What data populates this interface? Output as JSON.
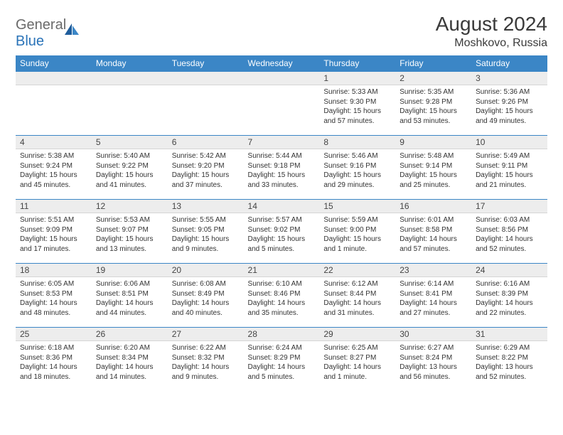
{
  "brand": {
    "part1": "General",
    "part2": "Blue"
  },
  "title": "August 2024",
  "location": "Moshkovo, Russia",
  "colors": {
    "header_bg": "#3b86c6",
    "header_text": "#ffffff",
    "daynum_bg": "#ededed",
    "body_text": "#333333",
    "title_text": "#3a3a3a",
    "logo_grey": "#6a6a6a",
    "logo_blue": "#2a73b8"
  },
  "day_headers": [
    "Sunday",
    "Monday",
    "Tuesday",
    "Wednesday",
    "Thursday",
    "Friday",
    "Saturday"
  ],
  "weeks": [
    [
      {
        "n": "",
        "sr": "",
        "ss": "",
        "dl": ""
      },
      {
        "n": "",
        "sr": "",
        "ss": "",
        "dl": ""
      },
      {
        "n": "",
        "sr": "",
        "ss": "",
        "dl": ""
      },
      {
        "n": "",
        "sr": "",
        "ss": "",
        "dl": ""
      },
      {
        "n": "1",
        "sr": "Sunrise: 5:33 AM",
        "ss": "Sunset: 9:30 PM",
        "dl": "Daylight: 15 hours and 57 minutes."
      },
      {
        "n": "2",
        "sr": "Sunrise: 5:35 AM",
        "ss": "Sunset: 9:28 PM",
        "dl": "Daylight: 15 hours and 53 minutes."
      },
      {
        "n": "3",
        "sr": "Sunrise: 5:36 AM",
        "ss": "Sunset: 9:26 PM",
        "dl": "Daylight: 15 hours and 49 minutes."
      }
    ],
    [
      {
        "n": "4",
        "sr": "Sunrise: 5:38 AM",
        "ss": "Sunset: 9:24 PM",
        "dl": "Daylight: 15 hours and 45 minutes."
      },
      {
        "n": "5",
        "sr": "Sunrise: 5:40 AM",
        "ss": "Sunset: 9:22 PM",
        "dl": "Daylight: 15 hours and 41 minutes."
      },
      {
        "n": "6",
        "sr": "Sunrise: 5:42 AM",
        "ss": "Sunset: 9:20 PM",
        "dl": "Daylight: 15 hours and 37 minutes."
      },
      {
        "n": "7",
        "sr": "Sunrise: 5:44 AM",
        "ss": "Sunset: 9:18 PM",
        "dl": "Daylight: 15 hours and 33 minutes."
      },
      {
        "n": "8",
        "sr": "Sunrise: 5:46 AM",
        "ss": "Sunset: 9:16 PM",
        "dl": "Daylight: 15 hours and 29 minutes."
      },
      {
        "n": "9",
        "sr": "Sunrise: 5:48 AM",
        "ss": "Sunset: 9:14 PM",
        "dl": "Daylight: 15 hours and 25 minutes."
      },
      {
        "n": "10",
        "sr": "Sunrise: 5:49 AM",
        "ss": "Sunset: 9:11 PM",
        "dl": "Daylight: 15 hours and 21 minutes."
      }
    ],
    [
      {
        "n": "11",
        "sr": "Sunrise: 5:51 AM",
        "ss": "Sunset: 9:09 PM",
        "dl": "Daylight: 15 hours and 17 minutes."
      },
      {
        "n": "12",
        "sr": "Sunrise: 5:53 AM",
        "ss": "Sunset: 9:07 PM",
        "dl": "Daylight: 15 hours and 13 minutes."
      },
      {
        "n": "13",
        "sr": "Sunrise: 5:55 AM",
        "ss": "Sunset: 9:05 PM",
        "dl": "Daylight: 15 hours and 9 minutes."
      },
      {
        "n": "14",
        "sr": "Sunrise: 5:57 AM",
        "ss": "Sunset: 9:02 PM",
        "dl": "Daylight: 15 hours and 5 minutes."
      },
      {
        "n": "15",
        "sr": "Sunrise: 5:59 AM",
        "ss": "Sunset: 9:00 PM",
        "dl": "Daylight: 15 hours and 1 minute."
      },
      {
        "n": "16",
        "sr": "Sunrise: 6:01 AM",
        "ss": "Sunset: 8:58 PM",
        "dl": "Daylight: 14 hours and 57 minutes."
      },
      {
        "n": "17",
        "sr": "Sunrise: 6:03 AM",
        "ss": "Sunset: 8:56 PM",
        "dl": "Daylight: 14 hours and 52 minutes."
      }
    ],
    [
      {
        "n": "18",
        "sr": "Sunrise: 6:05 AM",
        "ss": "Sunset: 8:53 PM",
        "dl": "Daylight: 14 hours and 48 minutes."
      },
      {
        "n": "19",
        "sr": "Sunrise: 6:06 AM",
        "ss": "Sunset: 8:51 PM",
        "dl": "Daylight: 14 hours and 44 minutes."
      },
      {
        "n": "20",
        "sr": "Sunrise: 6:08 AM",
        "ss": "Sunset: 8:49 PM",
        "dl": "Daylight: 14 hours and 40 minutes."
      },
      {
        "n": "21",
        "sr": "Sunrise: 6:10 AM",
        "ss": "Sunset: 8:46 PM",
        "dl": "Daylight: 14 hours and 35 minutes."
      },
      {
        "n": "22",
        "sr": "Sunrise: 6:12 AM",
        "ss": "Sunset: 8:44 PM",
        "dl": "Daylight: 14 hours and 31 minutes."
      },
      {
        "n": "23",
        "sr": "Sunrise: 6:14 AM",
        "ss": "Sunset: 8:41 PM",
        "dl": "Daylight: 14 hours and 27 minutes."
      },
      {
        "n": "24",
        "sr": "Sunrise: 6:16 AM",
        "ss": "Sunset: 8:39 PM",
        "dl": "Daylight: 14 hours and 22 minutes."
      }
    ],
    [
      {
        "n": "25",
        "sr": "Sunrise: 6:18 AM",
        "ss": "Sunset: 8:36 PM",
        "dl": "Daylight: 14 hours and 18 minutes."
      },
      {
        "n": "26",
        "sr": "Sunrise: 6:20 AM",
        "ss": "Sunset: 8:34 PM",
        "dl": "Daylight: 14 hours and 14 minutes."
      },
      {
        "n": "27",
        "sr": "Sunrise: 6:22 AM",
        "ss": "Sunset: 8:32 PM",
        "dl": "Daylight: 14 hours and 9 minutes."
      },
      {
        "n": "28",
        "sr": "Sunrise: 6:24 AM",
        "ss": "Sunset: 8:29 PM",
        "dl": "Daylight: 14 hours and 5 minutes."
      },
      {
        "n": "29",
        "sr": "Sunrise: 6:25 AM",
        "ss": "Sunset: 8:27 PM",
        "dl": "Daylight: 14 hours and 1 minute."
      },
      {
        "n": "30",
        "sr": "Sunrise: 6:27 AM",
        "ss": "Sunset: 8:24 PM",
        "dl": "Daylight: 13 hours and 56 minutes."
      },
      {
        "n": "31",
        "sr": "Sunrise: 6:29 AM",
        "ss": "Sunset: 8:22 PM",
        "dl": "Daylight: 13 hours and 52 minutes."
      }
    ]
  ]
}
